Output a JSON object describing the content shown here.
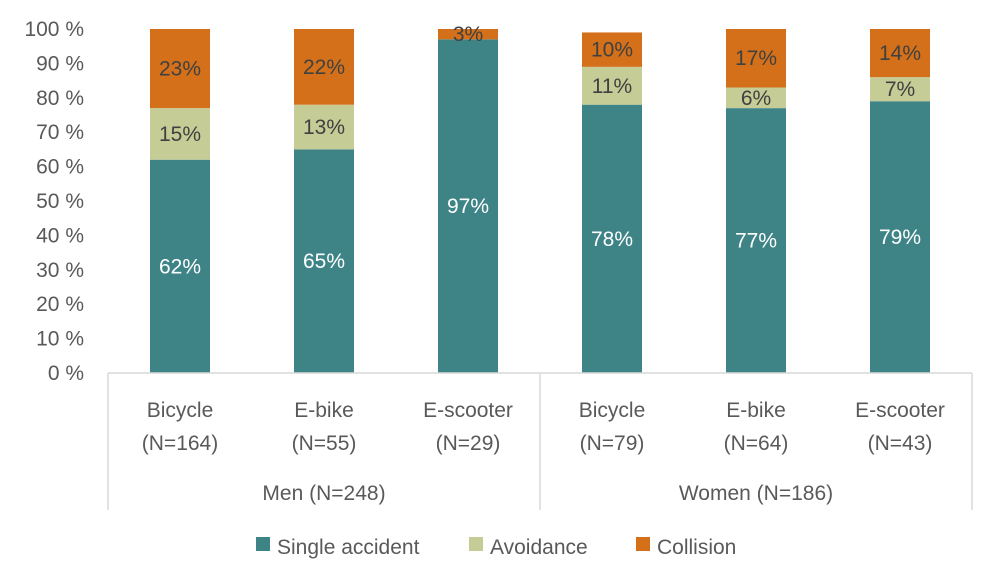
{
  "chart_data": {
    "type": "bar",
    "stacked": true,
    "percent_stacked": true,
    "title": "",
    "xlabel": "",
    "ylabel": "",
    "ylim": [
      0,
      100
    ],
    "yticks": [
      "0 %",
      "10 %",
      "20 %",
      "30 %",
      "40 %",
      "50 %",
      "60 %",
      "70 %",
      "80 %",
      "90 %",
      "100 %"
    ],
    "grid": false,
    "legend_position": "bottom",
    "categories": [
      {
        "line1": "Bicycle",
        "line2": "(N=164)",
        "group": 0
      },
      {
        "line1": "E-bike",
        "line2": "(N=55)",
        "group": 0
      },
      {
        "line1": "E-scooter",
        "line2": "(N=29)",
        "group": 0
      },
      {
        "line1": "Bicycle",
        "line2": "(N=79)",
        "group": 1
      },
      {
        "line1": "E-bike",
        "line2": "(N=64)",
        "group": 1
      },
      {
        "line1": "E-scooter",
        "line2": "(N=43)",
        "group": 1
      }
    ],
    "groups": [
      "Men (N=248)",
      "Women (N=186)"
    ],
    "series": [
      {
        "name": "Single accident",
        "color": "#3e8487",
        "label_color": "light",
        "values": [
          62,
          65,
          97,
          78,
          77,
          79
        ],
        "labels": [
          "62%",
          "65%",
          "97%",
          "78%",
          "77%",
          "79%"
        ]
      },
      {
        "name": "Avoidance",
        "color": "#c5cc96",
        "label_color": "dark",
        "values": [
          15,
          13,
          0,
          11,
          6,
          7
        ],
        "labels": [
          "15%",
          "13%",
          "",
          "11%",
          "6%",
          "7%"
        ]
      },
      {
        "name": "Collision",
        "color": "#d47019",
        "label_color": "dark",
        "values": [
          23,
          22,
          3,
          10,
          17,
          14
        ],
        "labels": [
          "23%",
          "22%",
          "3%",
          "10%",
          "17%",
          "14%"
        ]
      }
    ]
  }
}
